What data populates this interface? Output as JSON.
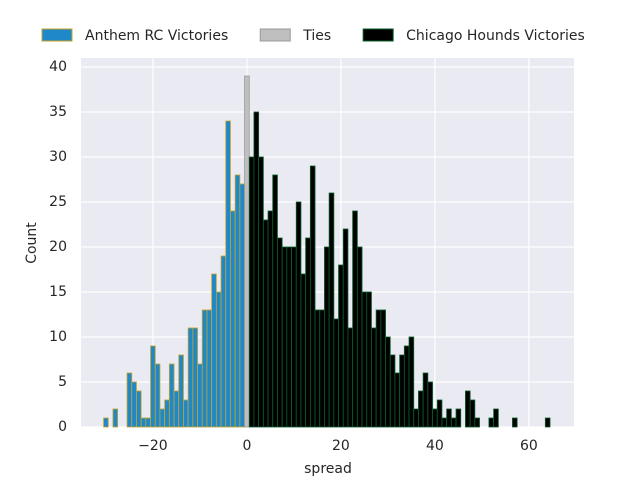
{
  "chart_data": {
    "type": "histogram",
    "xlabel": "spread",
    "ylabel": "Count",
    "xlim": [
      -35.3,
      69.6
    ],
    "ylim": [
      0,
      41
    ],
    "xticks": [
      {
        "value": -20,
        "label": "−20"
      },
      0,
      20,
      40,
      60
    ],
    "yticks": [
      0,
      5,
      10,
      15,
      20,
      25,
      30,
      35,
      40
    ],
    "grid": true,
    "legend": "top",
    "series": [
      {
        "name": "Anthem RC Victories",
        "color": "#1f88c8",
        "edgecolor": "#c9a227",
        "bins": [
          -30.5,
          -29.5,
          -28.5,
          -27.5,
          -26.5,
          -25.5,
          -24.5,
          -23.5,
          -22.5,
          -21.5,
          -20.5,
          -19.5,
          -18.5,
          -17.5,
          -16.5,
          -15.5,
          -14.5,
          -13.5,
          -12.5,
          -11.5,
          -10.5,
          -9.5,
          -8.5,
          -7.5,
          -6.5,
          -5.5,
          -4.5,
          -3.5,
          -2.5,
          -1.5,
          -0.5
        ],
        "values": [
          1,
          0,
          2,
          0,
          0,
          6,
          5,
          4,
          1,
          1,
          9,
          7,
          2,
          3,
          7,
          4,
          8,
          3,
          11,
          11,
          7,
          13,
          13,
          17,
          15,
          19,
          34,
          24,
          28,
          27
        ]
      },
      {
        "name": "Ties",
        "color": "#bfbfbf",
        "edgecolor": "#999999",
        "bins": [
          -0.5,
          0.5
        ],
        "values": [
          39
        ]
      },
      {
        "name": "Chicago Hounds Victories",
        "color": "#000000",
        "edgecolor": "#0b5e2c",
        "bins": [
          0.5,
          1.5,
          2.5,
          3.5,
          4.5,
          5.5,
          6.5,
          7.5,
          8.5,
          9.5,
          10.5,
          11.5,
          12.5,
          13.5,
          14.5,
          15.5,
          16.5,
          17.5,
          18.5,
          19.5,
          20.5,
          21.5,
          22.5,
          23.5,
          24.5,
          25.5,
          26.5,
          27.5,
          28.5,
          29.5,
          30.5,
          31.5,
          32.5,
          33.5,
          34.5,
          35.5,
          36.5,
          37.5,
          38.5,
          39.5,
          40.5,
          41.5,
          42.5,
          43.5,
          44.5,
          45.5,
          46.5,
          47.5,
          48.5,
          49.5,
          50.5,
          51.5,
          52.5,
          53.5,
          54.5,
          55.5,
          56.5,
          57.5,
          58.5,
          59.5,
          60.5,
          61.5,
          62.5,
          63.5,
          64.5
        ],
        "values": [
          30,
          35,
          30,
          23,
          24,
          28,
          21,
          20,
          20,
          20,
          25,
          17,
          21,
          29,
          13,
          13,
          20,
          26,
          12,
          18,
          22,
          11,
          24,
          20,
          15,
          15,
          11,
          13,
          13,
          10,
          8,
          6,
          8,
          9,
          10,
          2,
          4,
          6,
          5,
          2,
          3,
          1,
          2,
          1,
          2,
          0,
          4,
          3,
          1,
          0,
          0,
          1,
          2,
          0,
          0,
          0,
          1,
          0,
          0,
          0,
          0,
          0,
          0,
          1
        ]
      }
    ]
  }
}
